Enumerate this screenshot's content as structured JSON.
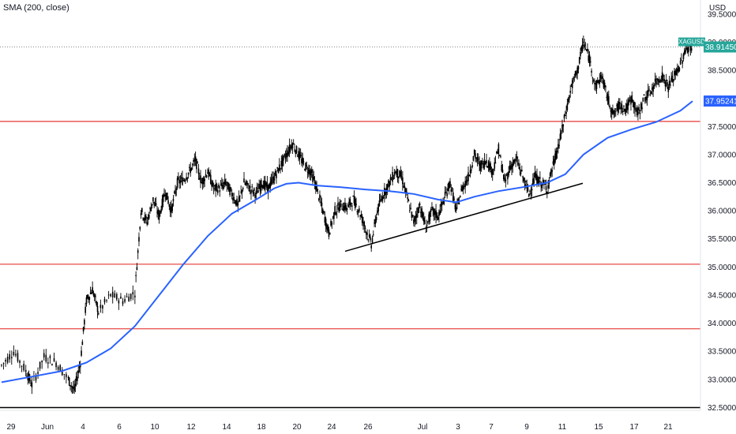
{
  "legend": {
    "indicator_label": "SMA (200, close)"
  },
  "price_axis": {
    "currency": "USD"
  },
  "chart_data": {
    "type": "candlestick",
    "symbol": "XAGUSD",
    "last_price": 38.9145,
    "last_price_label": "38.91450",
    "sma_value": 37.95241,
    "sma_label": "37.95241",
    "yticks": [
      "32.50000",
      "33.00000",
      "33.50000",
      "34.00000",
      "34.50000",
      "35.00000",
      "35.50000",
      "36.00000",
      "36.50000",
      "37.00000",
      "37.50000",
      "38.00000",
      "38.50000",
      "39.00000",
      "39.50000"
    ],
    "ylim": [
      32.45,
      39.75
    ],
    "xticks": [
      "29",
      "Jun",
      "4",
      "6",
      "10",
      "12",
      "14",
      "18",
      "20",
      "24",
      "26",
      "Jul",
      "3",
      "7",
      "9",
      "11",
      "15",
      "17",
      "21"
    ],
    "horizontal_levels": [
      {
        "value": 37.59,
        "color": "#e53935"
      },
      {
        "value": 35.05,
        "color": "#e53935"
      },
      {
        "value": 33.9,
        "color": "#e53935"
      },
      {
        "value": 32.5,
        "color": "#000000"
      }
    ],
    "trendline": {
      "from": {
        "x": "Jun 24",
        "y": 35.28
      },
      "to": {
        "x": "Jul 14",
        "y": 36.49
      },
      "color": "#000000"
    },
    "price_path": [
      [
        0,
        33.25
      ],
      [
        2,
        33.5
      ],
      [
        4,
        33.15
      ],
      [
        5,
        32.9
      ],
      [
        7,
        33.4
      ],
      [
        9,
        33.3
      ],
      [
        11,
        33.0
      ],
      [
        12,
        32.8
      ],
      [
        13,
        33.3
      ],
      [
        14,
        34.4
      ],
      [
        15,
        34.6
      ],
      [
        16,
        34.2
      ],
      [
        18,
        34.5
      ],
      [
        20,
        34.4
      ],
      [
        22,
        34.55
      ],
      [
        23,
        36.0
      ],
      [
        24,
        35.8
      ],
      [
        25,
        36.2
      ],
      [
        26,
        35.9
      ],
      [
        27,
        36.35
      ],
      [
        28,
        36.0
      ],
      [
        29,
        36.5
      ],
      [
        30,
        36.55
      ],
      [
        31,
        36.7
      ],
      [
        32,
        36.9
      ],
      [
        33,
        36.5
      ],
      [
        34,
        36.7
      ],
      [
        35,
        36.4
      ],
      [
        36,
        36.4
      ],
      [
        37,
        36.5
      ],
      [
        38,
        36.3
      ],
      [
        39,
        36.1
      ],
      [
        40,
        36.5
      ],
      [
        41,
        36.4
      ],
      [
        42,
        36.3
      ],
      [
        43,
        36.5
      ],
      [
        44,
        36.4
      ],
      [
        45,
        36.6
      ],
      [
        46,
        36.8
      ],
      [
        47,
        37.0
      ],
      [
        48,
        37.2
      ],
      [
        49,
        37.0
      ],
      [
        50,
        36.8
      ],
      [
        51,
        36.7
      ],
      [
        52,
        36.4
      ],
      [
        53,
        36.0
      ],
      [
        54,
        35.6
      ],
      [
        55,
        36.0
      ],
      [
        56,
        36.1
      ],
      [
        57,
        36.05
      ],
      [
        58,
        36.2
      ],
      [
        59,
        36.0
      ],
      [
        60,
        35.7
      ],
      [
        61,
        35.4
      ],
      [
        62,
        36.0
      ],
      [
        63,
        36.3
      ],
      [
        64,
        36.5
      ],
      [
        65,
        36.7
      ],
      [
        66,
        36.6
      ],
      [
        67,
        36.2
      ],
      [
        68,
        35.8
      ],
      [
        69,
        36.1
      ],
      [
        70,
        35.7
      ],
      [
        71,
        36.0
      ],
      [
        72,
        35.9
      ],
      [
        73,
        36.2
      ],
      [
        74,
        36.5
      ],
      [
        75,
        36.0
      ],
      [
        76,
        36.4
      ],
      [
        77,
        36.6
      ],
      [
        78,
        37.0
      ],
      [
        79,
        36.8
      ],
      [
        80,
        36.9
      ],
      [
        81,
        36.7
      ],
      [
        82,
        37.1
      ],
      [
        83,
        36.5
      ],
      [
        84,
        36.8
      ],
      [
        85,
        36.9
      ],
      [
        86,
        36.6
      ],
      [
        87,
        36.3
      ],
      [
        88,
        36.6
      ],
      [
        89,
        36.5
      ],
      [
        90,
        36.4
      ],
      [
        91,
        36.8
      ],
      [
        92,
        37.2
      ],
      [
        93,
        37.7
      ],
      [
        94,
        38.2
      ],
      [
        95,
        38.5
      ],
      [
        96,
        39.0
      ],
      [
        97,
        38.7
      ],
      [
        98,
        38.2
      ],
      [
        99,
        38.4
      ],
      [
        100,
        38.0
      ],
      [
        101,
        37.7
      ],
      [
        102,
        37.9
      ],
      [
        103,
        37.8
      ],
      [
        104,
        38.0
      ],
      [
        105,
        37.7
      ],
      [
        106,
        38.0
      ],
      [
        107,
        38.1
      ],
      [
        108,
        38.3
      ],
      [
        109,
        38.4
      ],
      [
        110,
        38.2
      ],
      [
        111,
        38.4
      ],
      [
        112,
        38.6
      ],
      [
        113,
        38.9
      ],
      [
        114,
        38.91
      ]
    ],
    "sma_path": [
      [
        0,
        32.95
      ],
      [
        5,
        33.05
      ],
      [
        10,
        33.15
      ],
      [
        14,
        33.3
      ],
      [
        18,
        33.55
      ],
      [
        22,
        33.95
      ],
      [
        26,
        34.5
      ],
      [
        30,
        35.05
      ],
      [
        34,
        35.55
      ],
      [
        38,
        35.95
      ],
      [
        42,
        36.2
      ],
      [
        45,
        36.4
      ],
      [
        47,
        36.48
      ],
      [
        49,
        36.5
      ],
      [
        52,
        36.45
      ],
      [
        56,
        36.42
      ],
      [
        60,
        36.38
      ],
      [
        64,
        36.35
      ],
      [
        68,
        36.3
      ],
      [
        72,
        36.2
      ],
      [
        75,
        36.15
      ],
      [
        78,
        36.25
      ],
      [
        82,
        36.35
      ],
      [
        86,
        36.42
      ],
      [
        90,
        36.5
      ],
      [
        93,
        36.65
      ],
      [
        96,
        37.0
      ],
      [
        100,
        37.3
      ],
      [
        104,
        37.45
      ],
      [
        108,
        37.58
      ],
      [
        112,
        37.78
      ],
      [
        114,
        37.95
      ]
    ]
  }
}
